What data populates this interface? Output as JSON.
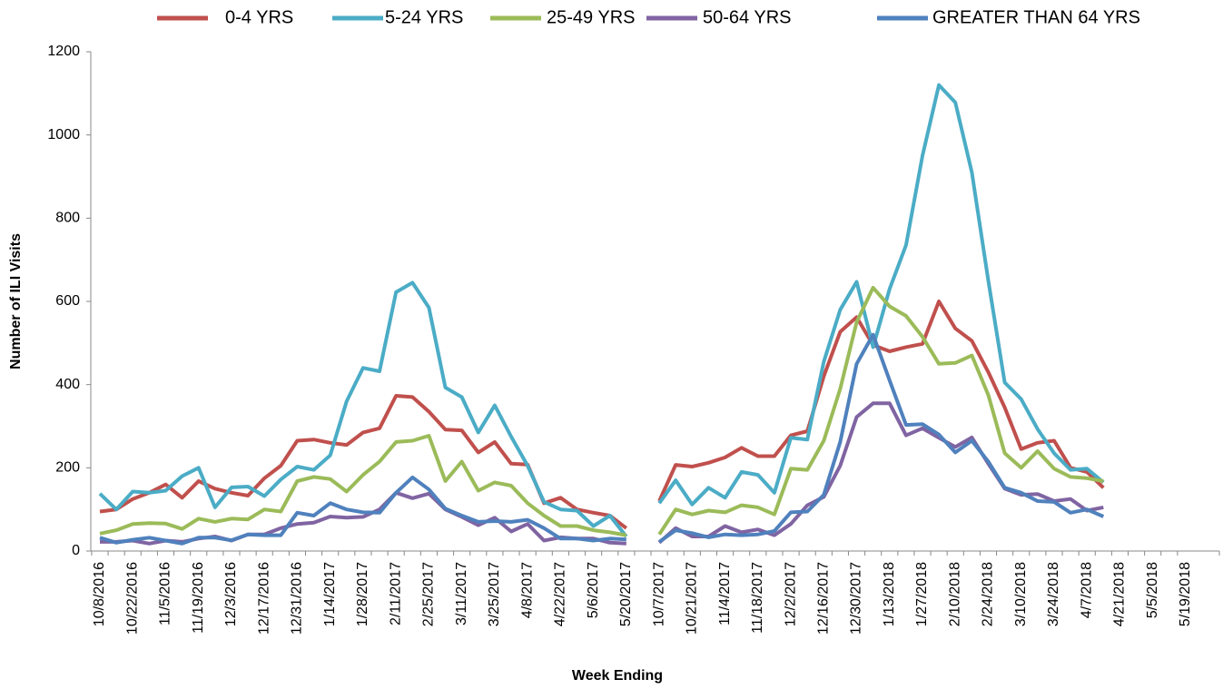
{
  "chart_data": {
    "type": "line",
    "y_label": "Number of ILI Visits",
    "x_label": "Week Ending",
    "categories": [
      "10/8/2016",
      null,
      "10/22/2016",
      null,
      "11/5/2016",
      null,
      "11/19/2016",
      null,
      "12/3/2016",
      null,
      "12/17/2016",
      null,
      "12/31/2016",
      null,
      "1/14/2017",
      null,
      "1/28/2017",
      null,
      "2/11/2017",
      null,
      "2/25/2017",
      null,
      "3/11/2017",
      null,
      "3/25/2017",
      null,
      "4/8/2017",
      null,
      "4/22/2017",
      null,
      "5/6/2017",
      null,
      "5/20/2017",
      null,
      "10/7/2017",
      null,
      "10/21/2017",
      null,
      "11/4/2017",
      null,
      "11/18/2017",
      null,
      "12/2/2017",
      null,
      "12/16/2017",
      null,
      "12/30/2017",
      null,
      "1/13/2018",
      null,
      "1/27/2018",
      null,
      "2/10/2018",
      null,
      "2/24/2018",
      null,
      "3/10/2018",
      null,
      "3/24/2018",
      null,
      "4/7/2018",
      null,
      "4/21/2018",
      null,
      "5/5/2018",
      null,
      "5/19/2018"
    ],
    "series": [
      {
        "name": "0-4 YRS",
        "color": "#c0504d",
        "values": [
          95,
          100,
          125,
          140,
          160,
          128,
          168,
          150,
          140,
          133,
          175,
          205,
          265,
          268,
          260,
          255,
          285,
          295,
          373,
          370,
          335,
          292,
          290,
          237,
          262,
          210,
          208,
          115,
          128,
          100,
          92,
          85,
          55,
          null,
          120,
          207,
          203,
          212,
          225,
          248,
          228,
          228,
          278,
          288,
          420,
          527,
          562,
          495,
          480,
          490,
          498,
          600,
          535,
          505,
          430,
          345,
          245,
          260,
          265,
          200,
          190,
          152,
          null,
          null,
          null,
          null,
          null
        ]
      },
      {
        "name": "5-24 YRS",
        "color": "#4bacc6",
        "values": [
          138,
          100,
          143,
          140,
          145,
          180,
          200,
          105,
          153,
          155,
          132,
          172,
          203,
          195,
          230,
          360,
          440,
          432,
          622,
          645,
          585,
          393,
          370,
          285,
          350,
          275,
          205,
          118,
          100,
          97,
          60,
          85,
          35,
          null,
          115,
          170,
          112,
          152,
          128,
          190,
          183,
          140,
          272,
          268,
          455,
          580,
          647,
          490,
          630,
          735,
          950,
          1120,
          1078,
          910,
          650,
          405,
          365,
          293,
          235,
          195,
          198,
          165,
          null,
          null,
          null,
          null,
          null
        ]
      },
      {
        "name": "25-49 YRS",
        "color": "#9bbb59",
        "values": [
          42,
          50,
          65,
          67,
          66,
          53,
          78,
          70,
          78,
          76,
          100,
          95,
          168,
          178,
          173,
          143,
          183,
          215,
          262,
          265,
          277,
          168,
          215,
          145,
          165,
          157,
          115,
          85,
          60,
          60,
          50,
          45,
          38,
          null,
          40,
          100,
          88,
          97,
          93,
          110,
          105,
          88,
          198,
          195,
          265,
          390,
          550,
          633,
          588,
          565,
          515,
          450,
          452,
          470,
          375,
          235,
          200,
          240,
          198,
          178,
          175,
          168,
          null,
          null,
          null,
          null,
          null
        ]
      },
      {
        "name": "50-64 YRS",
        "color": "#8064a2",
        "values": [
          22,
          22,
          25,
          18,
          25,
          22,
          30,
          35,
          25,
          40,
          40,
          55,
          65,
          68,
          83,
          80,
          82,
          100,
          140,
          127,
          138,
          100,
          82,
          62,
          80,
          47,
          65,
          25,
          33,
          30,
          30,
          20,
          18,
          null,
          20,
          55,
          35,
          35,
          60,
          45,
          52,
          38,
          65,
          110,
          130,
          205,
          322,
          355,
          355,
          278,
          295,
          272,
          250,
          273,
          210,
          150,
          135,
          137,
          120,
          125,
          97,
          105,
          null,
          null,
          null,
          null,
          null
        ]
      },
      {
        "name": "GREATER THAN 64 YRS",
        "color": "#4f81bd",
        "values": [
          32,
          20,
          27,
          32,
          25,
          18,
          32,
          32,
          26,
          40,
          38,
          38,
          92,
          85,
          115,
          100,
          93,
          92,
          140,
          177,
          148,
          102,
          85,
          70,
          72,
          70,
          75,
          55,
          30,
          30,
          25,
          30,
          28,
          null,
          22,
          50,
          43,
          33,
          40,
          38,
          40,
          48,
          93,
          95,
          135,
          262,
          450,
          520,
          410,
          303,
          305,
          280,
          237,
          265,
          215,
          152,
          140,
          120,
          118,
          92,
          100,
          83,
          null,
          null,
          null,
          null,
          null
        ]
      }
    ],
    "ylim": [
      0,
      1200
    ],
    "yticks": [
      0,
      200,
      400,
      600,
      800,
      1000,
      1200
    ],
    "legend": "top"
  }
}
